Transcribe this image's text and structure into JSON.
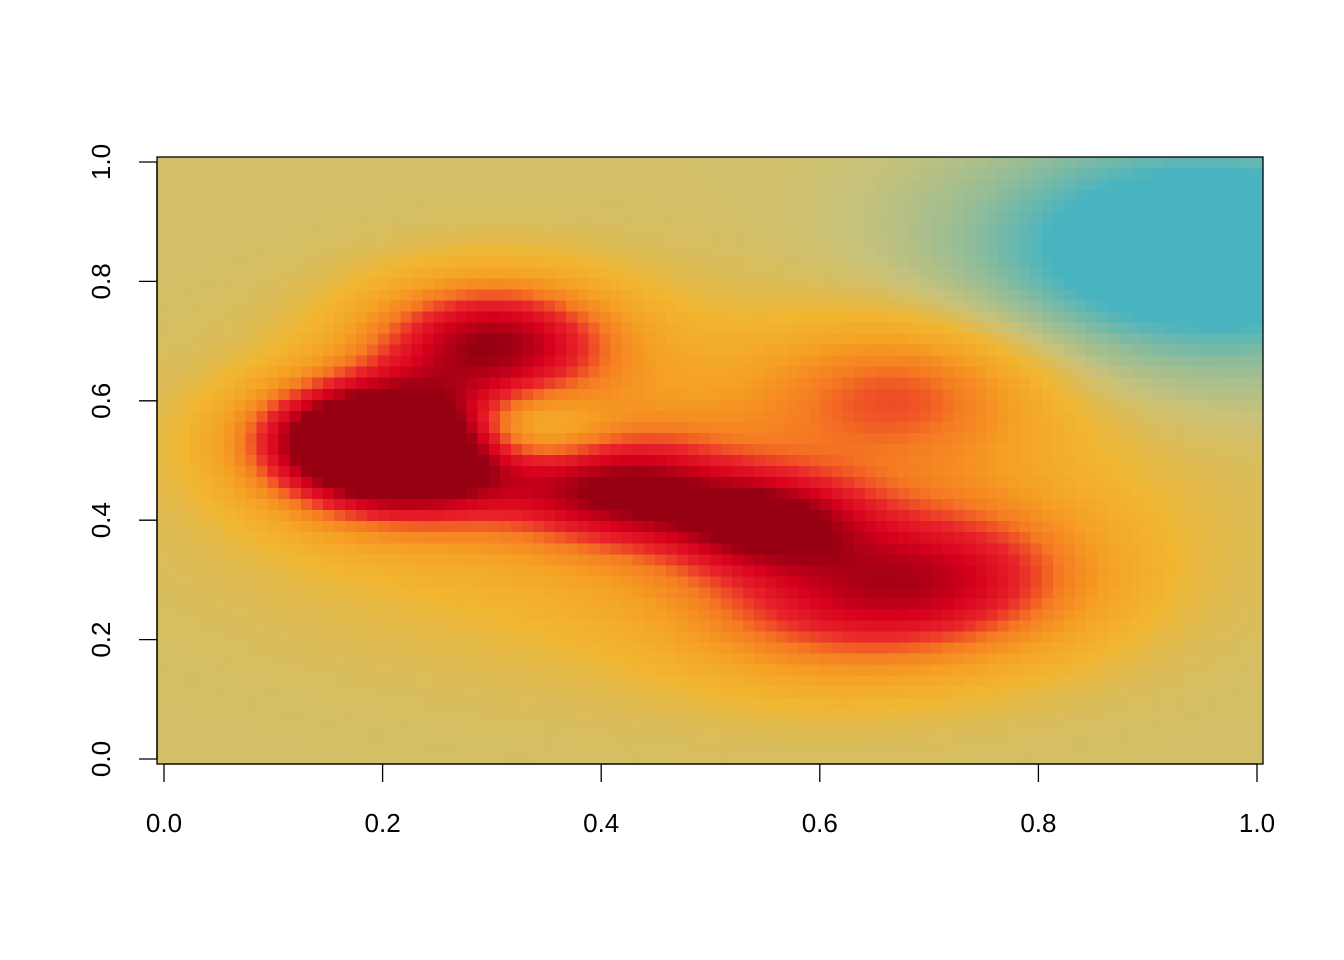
{
  "chart_data": {
    "type": "heatmap",
    "title": "",
    "xlabel": "",
    "ylabel": "",
    "xlim": [
      0.0,
      1.0
    ],
    "ylim": [
      0.0,
      1.0
    ],
    "x_ticks": [
      "0.0",
      "0.2",
      "0.4",
      "0.6",
      "0.8",
      "1.0"
    ],
    "y_ticks": [
      "0.0",
      "0.2",
      "0.4",
      "0.6",
      "0.8",
      "1.0"
    ],
    "x_tick_values": [
      0.0,
      0.2,
      0.4,
      0.6,
      0.8,
      1.0
    ],
    "y_tick_values": [
      0.0,
      0.2,
      0.4,
      0.6,
      0.8,
      1.0
    ],
    "grid": false,
    "legend": "none",
    "color_scale": [
      "#48b4c0",
      "#8fbc9a",
      "#c8c27a",
      "#f2b630",
      "#f5a023",
      "#f57a22",
      "#e8242a",
      "#d6001c",
      "#960012"
    ],
    "color_scale_direction": "low-to-high",
    "density_sources": [
      {
        "x": 0.22,
        "y": 0.5,
        "weight": 1.0,
        "spread": 0.08
      },
      {
        "x": 0.3,
        "y": 0.7,
        "weight": 0.85,
        "spread": 0.08
      },
      {
        "x": 0.18,
        "y": 0.55,
        "weight": 0.75,
        "spread": 0.07
      },
      {
        "x": 0.42,
        "y": 0.45,
        "weight": 0.65,
        "spread": 0.07
      },
      {
        "x": 0.55,
        "y": 0.4,
        "weight": 0.6,
        "spread": 0.06
      },
      {
        "x": 0.72,
        "y": 0.3,
        "weight": 0.55,
        "spread": 0.1
      },
      {
        "x": 0.68,
        "y": 0.62,
        "weight": 0.4,
        "spread": 0.09
      },
      {
        "x": 0.6,
        "y": 0.25,
        "weight": 0.35,
        "spread": 0.1
      },
      {
        "x": 0.33,
        "y": 0.55,
        "weight": -0.45,
        "spread": 0.05
      },
      {
        "x": 0.95,
        "y": 0.85,
        "weight": -0.6,
        "spread": 0.15
      }
    ],
    "background_level": 0.28,
    "grid_resolution": [
      100,
      55
    ]
  }
}
